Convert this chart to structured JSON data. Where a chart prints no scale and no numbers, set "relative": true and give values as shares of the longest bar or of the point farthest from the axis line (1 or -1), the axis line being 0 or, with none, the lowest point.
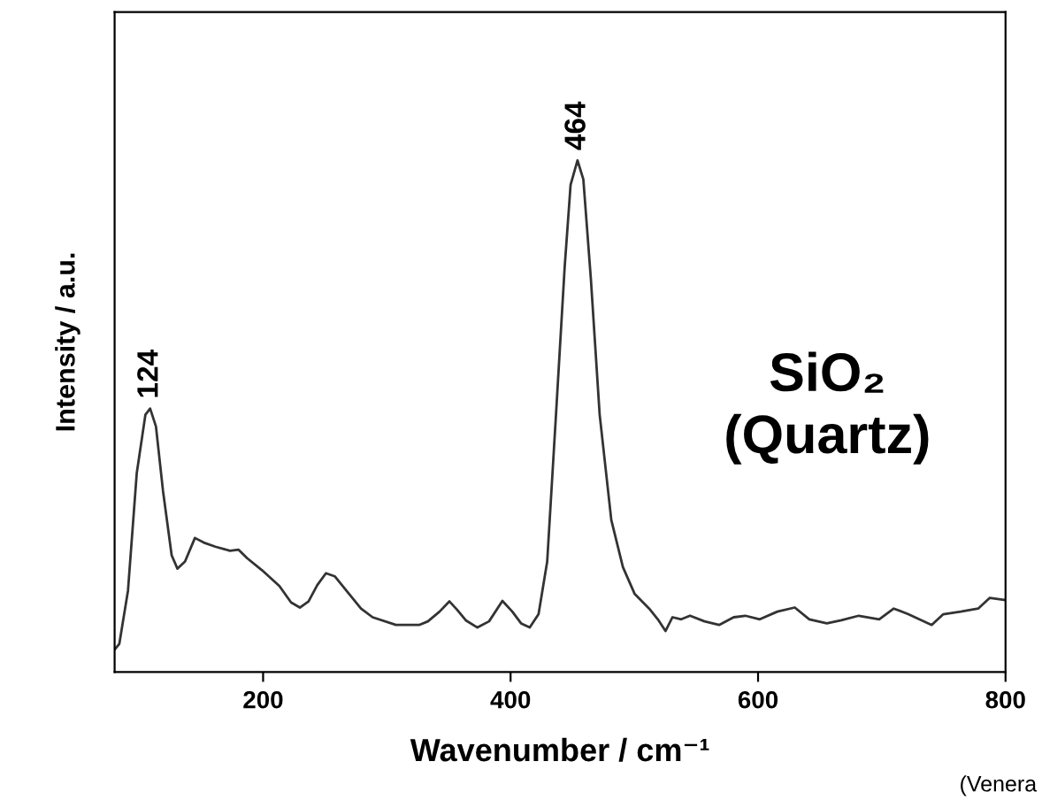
{
  "chart_data": {
    "type": "line",
    "relative": true,
    "xlabel": "Wavenumber / cm⁻¹",
    "ylabel": "Intensity / a.u.",
    "xlim": [
      80,
      800
    ],
    "xticks": [
      200,
      400,
      600,
      800
    ],
    "marker": "none",
    "line_style": "solid",
    "annotations": [
      {
        "text": "124",
        "x": 108.7,
        "y": 0.515
      },
      {
        "text": "464",
        "x": 454.1,
        "y": 1.0
      },
      "SiO₂\n(Quartz)",
      "(Venera"
    ],
    "series": [
      {
        "color": "#333333",
        "x": [
          80,
          83.8,
          90.8,
          97.9,
          104.9,
          108.7,
          113.4,
          119.1,
          126.1,
          130.8,
          136.9,
          144.9,
          152,
          161.4,
          173.2,
          180.2,
          187.3,
          199.1,
          213.2,
          222.6,
          229.7,
          236.7,
          243.8,
          250.8,
          257.9,
          267.3,
          279.1,
          288.5,
          307.3,
          326.1,
          333.2,
          342.6,
          350.6,
          356.7,
          363.8,
          373.2,
          382.6,
          393.4,
          401.4,
          408.5,
          415.5,
          422.6,
          429.6,
          436.7,
          443.7,
          448.5,
          454.1,
          458.8,
          464.9,
          472.0,
          481.4,
          490.8,
          500.2,
          512.0,
          519.0,
          525.2,
          530.8,
          537.9,
          545.0,
          556.7,
          568.5,
          580.3,
          589.7,
          601.4,
          615.6,
          629.7,
          641.4,
          655.6,
          667.3,
          681.4,
          697.9,
          709.7,
          721.4,
          740.3,
          749.7,
          763.8,
          777.9,
          787.3,
          799.1
        ],
        "values": [
          0.044,
          0.055,
          0.159,
          0.389,
          0.503,
          0.515,
          0.48,
          0.354,
          0.228,
          0.202,
          0.216,
          0.262,
          0.253,
          0.245,
          0.237,
          0.239,
          0.222,
          0.199,
          0.168,
          0.136,
          0.126,
          0.138,
          0.17,
          0.193,
          0.187,
          0.159,
          0.124,
          0.107,
          0.092,
          0.092,
          0.099,
          0.118,
          0.138,
          0.122,
          0.101,
          0.087,
          0.099,
          0.139,
          0.118,
          0.095,
          0.087,
          0.113,
          0.216,
          0.503,
          0.791,
          0.952,
          1.0,
          0.963,
          0.768,
          0.503,
          0.297,
          0.205,
          0.153,
          0.124,
          0.103,
          0.08,
          0.107,
          0.103,
          0.11,
          0.099,
          0.092,
          0.107,
          0.11,
          0.103,
          0.118,
          0.126,
          0.103,
          0.095,
          0.101,
          0.11,
          0.103,
          0.124,
          0.113,
          0.092,
          0.113,
          0.118,
          0.124,
          0.145,
          0.141
        ]
      }
    ]
  }
}
